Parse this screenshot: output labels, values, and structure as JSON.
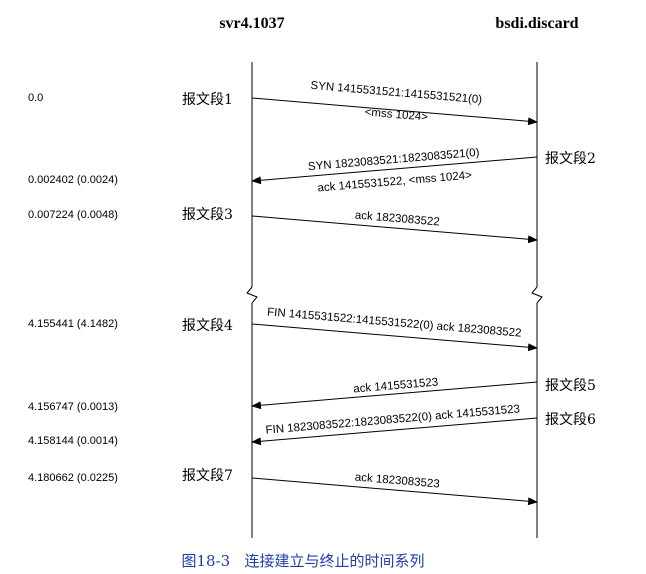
{
  "hosts": {
    "left": "svr4.1037",
    "right": "bsdi.discard"
  },
  "times": [
    "0.0",
    "0.002402 (0.0024)",
    "0.007224 (0.0048)",
    "4.155441 (4.1482)",
    "4.156747 (0.0013)",
    "4.158144 (0.0014)",
    "4.180662 (0.0225)"
  ],
  "segments": [
    "报文段1",
    "报文段2",
    "报文段3",
    "报文段4",
    "报文段5",
    "报文段6",
    "报文段7"
  ],
  "arrows": [
    {
      "line1": "SYN  1415531521:1415531521(0)",
      "line2": "<mss 1024>"
    },
    {
      "line1": "SYN  1823083521:1823083521(0)",
      "line2": "ack 1415531522, <mss 1024>"
    },
    {
      "line1": "ack 1823083522"
    },
    {
      "line1": "FIN  1415531522:1415531522(0) ack 1823083522"
    },
    {
      "line1": "ack 1415531523"
    },
    {
      "line1": "FIN  1823083522:1823083522(0) ack 1415531523"
    },
    {
      "line1": "ack 1823083523"
    }
  ],
  "caption": "图18-3   连接建立与终止的时间系列"
}
